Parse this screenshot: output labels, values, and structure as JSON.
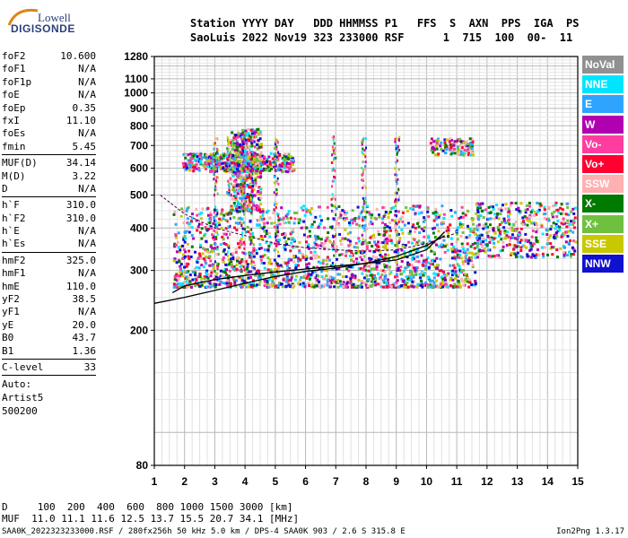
{
  "logo": {
    "line1": "Lowell",
    "line2": "DIGISONDE"
  },
  "header": {
    "line1": "Station YYYY DAY   DDD HHMMSS P1   FFS  S  AXN  PPS  IGA  PS",
    "line2": "SaoLuis 2022 Nov19 323 233000 RSF      1  715  100  00-  11"
  },
  "params": {
    "group1": [
      {
        "label": "foF2",
        "value": "10.600"
      },
      {
        "label": "foF1",
        "value": "N/A"
      },
      {
        "label": "foF1p",
        "value": "N/A"
      },
      {
        "label": "foE",
        "value": "N/A"
      },
      {
        "label": "foEp",
        "value": "0.35"
      },
      {
        "label": "fxI",
        "value": "11.10"
      },
      {
        "label": "foEs",
        "value": "N/A"
      },
      {
        "label": "fmin",
        "value": "5.45"
      }
    ],
    "group2": [
      {
        "label": "MUF(D)",
        "value": "34.14"
      },
      {
        "label": "M(D)",
        "value": "3.22"
      },
      {
        "label": "D",
        "value": "N/A"
      }
    ],
    "group3": [
      {
        "label": "h`F",
        "value": "310.0"
      },
      {
        "label": "h`F2",
        "value": "310.0"
      },
      {
        "label": "h`E",
        "value": "N/A"
      },
      {
        "label": "h`Es",
        "value": "N/A"
      }
    ],
    "group4": [
      {
        "label": "hmF2",
        "value": "325.0"
      },
      {
        "label": "hmF1",
        "value": "N/A"
      },
      {
        "label": "hmE",
        "value": "110.0"
      },
      {
        "label": "yF2",
        "value": "38.5"
      },
      {
        "label": "yF1",
        "value": "N/A"
      },
      {
        "label": "yE",
        "value": "20.0"
      },
      {
        "label": "B0",
        "value": "43.7"
      },
      {
        "label": "B1",
        "value": "1.36"
      }
    ],
    "clevel": {
      "label": "C-level",
      "value": "33"
    },
    "auto": [
      "Auto:",
      "Artist5",
      "500200"
    ]
  },
  "legend": [
    {
      "label": "NoVal",
      "color": "#909090"
    },
    {
      "label": "NNE",
      "color": "#00e5ff"
    },
    {
      "label": "E",
      "color": "#2fa4ff"
    },
    {
      "label": "W",
      "color": "#b000b0"
    },
    {
      "label": "Vo-",
      "color": "#ff3da0"
    },
    {
      "label": "Vo+",
      "color": "#ff0030"
    },
    {
      "label": "SSW",
      "color": "#ffb0b0"
    },
    {
      "label": "X-",
      "color": "#007a00"
    },
    {
      "label": "X+",
      "color": "#70c040"
    },
    {
      "label": "SSE",
      "color": "#c8c800"
    },
    {
      "label": "NNW",
      "color": "#1010d0"
    }
  ],
  "bottom": {
    "d_line": "D     100  200  400  600  800 1000 1500 3000 [km]",
    "muf_line": "MUF  11.0 11.1 11.6 12.5 13.7 15.5 20.7 34.1 [MHz]"
  },
  "footer": {
    "left": "SAA0K_2022323233000.RSF / 280fx256h 50 kHz 5.0 km / DPS-4 SAA0K 903 / 2.6 S 315.8 E",
    "right": "Ion2Png 1.3.17"
  },
  "chart_data": {
    "type": "scatter",
    "title": "",
    "xlabel": "",
    "ylabel": "",
    "xlim": [
      1,
      15
    ],
    "ylim": [
      80,
      1280
    ],
    "x_ticks": [
      "1",
      "2",
      "3",
      "4",
      "5",
      "6",
      "7",
      "8",
      "9",
      "10",
      "11",
      "12",
      "13",
      "14",
      "15"
    ],
    "y_ticks": [
      80,
      200,
      300,
      400,
      500,
      600,
      700,
      800,
      900,
      1000,
      1100,
      1280
    ],
    "y_scale": "log",
    "grid": true,
    "legend_position": "right",
    "traces": [
      {
        "name": "O-trace",
        "x": [
          1.6,
          2.0,
          3.0,
          4.0,
          5.0,
          6.0,
          7.0,
          8.0,
          9.0,
          10.0,
          10.6
        ],
        "y": [
          258,
          270,
          282,
          290,
          297,
          303,
          309,
          315,
          322,
          345,
          390
        ]
      },
      {
        "name": "profile",
        "x": [
          1.0,
          2.0,
          3.0,
          4.0,
          5.0,
          6.0,
          7.0,
          8.0,
          9.0,
          10.0,
          10.6
        ],
        "y": [
          240,
          250,
          262,
          275,
          288,
          298,
          305,
          315,
          330,
          355,
          380
        ]
      },
      {
        "name": "X-trace",
        "x": [
          1.2,
          2.0,
          3.0,
          4.0,
          5.0,
          6.0,
          7.0,
          8.0,
          9.0,
          10.0,
          11.1
        ],
        "y": [
          500,
          440,
          400,
          380,
          360,
          350,
          345,
          342,
          345,
          360,
          390
        ]
      }
    ],
    "echo_clusters": [
      {
        "x": [
          1.6,
          11.6
        ],
        "y": [
          270,
          470
        ],
        "density": "high"
      },
      {
        "x": [
          1.9,
          5.6
        ],
        "y": [
          590,
          670
        ],
        "density": "medium"
      },
      {
        "x": [
          3.5,
          4.5
        ],
        "y": [
          450,
          790
        ],
        "density": "medium"
      },
      {
        "x": [
          10.1,
          11.5
        ],
        "y": [
          660,
          740
        ],
        "density": "low"
      },
      {
        "x": [
          11.6,
          14.9
        ],
        "y": [
          330,
          480
        ],
        "density": "medium"
      }
    ]
  }
}
